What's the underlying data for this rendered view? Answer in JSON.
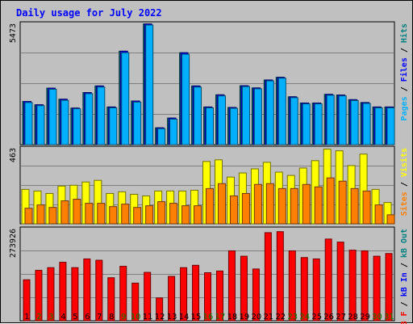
{
  "chart_data": {
    "type": "bar",
    "title": "Daily usage for July 2022",
    "title_color": "#0000ff",
    "x": [
      "1",
      "2",
      "3",
      "4",
      "5",
      "6",
      "7",
      "8",
      "9",
      "10",
      "11",
      "12",
      "13",
      "14",
      "15",
      "16",
      "17",
      "18",
      "19",
      "20",
      "21",
      "22",
      "23",
      "24",
      "25",
      "26",
      "27",
      "28",
      "29",
      "30",
      "31"
    ],
    "weekend_days": [
      "2",
      "3",
      "9",
      "10",
      "16",
      "17",
      "23",
      "24",
      "30",
      "31"
    ],
    "day_colors": {
      "weekday": "#000000",
      "weekend": "#007f00"
    },
    "grid": true,
    "panels": [
      {
        "name": "hits-files-pages",
        "max_label": "5473",
        "ymax": 5473,
        "side_labels": [
          {
            "text": "Pages",
            "color": "#00b0ff"
          },
          {
            "text": " / ",
            "color": "#000000"
          },
          {
            "text": "Files",
            "color": "#0000ff"
          },
          {
            "text": " / ",
            "color": "#000000"
          },
          {
            "text": "Hits",
            "color": "#008080"
          }
        ],
        "series": [
          {
            "key": "hits",
            "color": "#008080",
            "values": [
              1950,
              1800,
              2550,
              2050,
              1650,
              2350,
              2650,
              1700,
              4220,
              1970,
              5450,
              760,
              1200,
              4150,
              2650,
              1700,
              2250,
              1680,
              2660,
              2560,
              2920,
              3040,
              2160,
              1880,
              1880,
              2270,
              2240,
              2030,
              1900,
              1700,
              1700
            ]
          },
          {
            "key": "files",
            "color": "#0000ff",
            "values": [
              1950,
              1800,
              2550,
              2050,
              1650,
              2350,
              2650,
              1700,
              4220,
              1970,
              5450,
              760,
              1200,
              4150,
              2650,
              1700,
              2250,
              1680,
              2660,
              2560,
              2920,
              3040,
              2160,
              1880,
              1880,
              2270,
              2240,
              2030,
              1900,
              1700,
              1700
            ]
          },
          {
            "key": "pages",
            "color": "#00b0ff",
            "values": [
              1900,
              1760,
              2500,
              2000,
              1620,
              2300,
              2600,
              1660,
              4150,
              1920,
              5400,
              720,
              1150,
              4080,
              2600,
              1660,
              2200,
              1640,
              2620,
              2520,
              2880,
              3000,
              2120,
              1840,
              1840,
              2230,
              2200,
              1990,
              1860,
              1660,
              1660
            ]
          }
        ]
      },
      {
        "name": "visits-sites",
        "max_label": "463",
        "ymax": 463,
        "side_labels": [
          {
            "text": "Sites",
            "color": "#ff8000"
          },
          {
            "text": " / ",
            "color": "#000000"
          },
          {
            "text": "Visits",
            "color": "#ffff00"
          }
        ],
        "series": [
          {
            "key": "visits",
            "color": "#ffff00",
            "values": [
              210,
              200,
              185,
              230,
              235,
              255,
              265,
              185,
              195,
              180,
              170,
              200,
              200,
              200,
              205,
              380,
              390,
              285,
              310,
              335,
              375,
              315,
              295,
              340,
              385,
              455,
              445,
              355,
              425,
              210,
              130
            ]
          },
          {
            "key": "sites",
            "color": "#ff8000",
            "values": [
              95,
              115,
              100,
              140,
              150,
              125,
              125,
              105,
              120,
              100,
              110,
              135,
              125,
              110,
              110,
              215,
              245,
              170,
              185,
              240,
              245,
              215,
              215,
              240,
              225,
              280,
              260,
              215,
              200,
              115,
              55
            ]
          }
        ]
      },
      {
        "name": "kb",
        "max_label": "273926",
        "ymax": 273926,
        "side_labels": [
          {
            "text": "kB F",
            "color": "#ff0000"
          },
          {
            "text": " / ",
            "color": "#000000"
          },
          {
            "text": "kB In",
            "color": "#0000ff"
          },
          {
            "text": " / ",
            "color": "#000000"
          },
          {
            "text": "kB Out",
            "color": "#008080"
          }
        ],
        "series": [
          {
            "key": "kbf",
            "color": "#ff0000",
            "values": [
              122000,
              150000,
              158000,
              174000,
              158000,
              184000,
              180000,
              128000,
              162000,
              112000,
              144000,
              68000,
              132000,
              158000,
              165000,
              143000,
              148000,
              208000,
              192000,
              154000,
              262000,
              265000,
              208000,
              188000,
              184000,
              243000,
              234000,
              210000,
              208000,
              192000,
              200000
            ]
          }
        ]
      }
    ]
  }
}
